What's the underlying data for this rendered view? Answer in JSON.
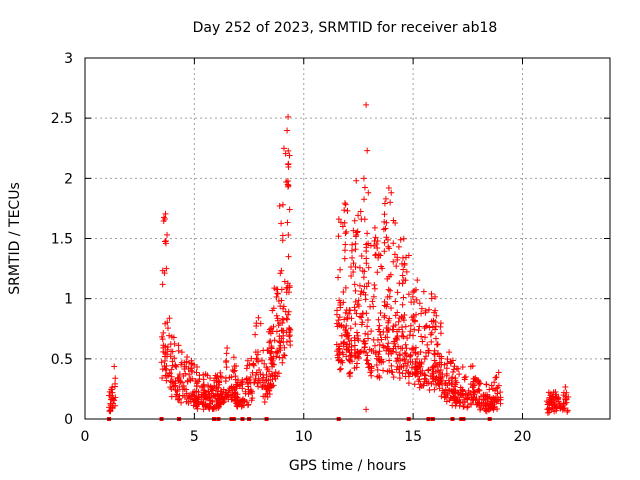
{
  "chart_data": {
    "type": "scatter",
    "title": "Day 252 of 2023, SRMTID for receiver ab18",
    "xlabel": "GPS time / hours",
    "ylabel": "SRMTID / TECUs",
    "xlim": [
      0,
      24
    ],
    "ylim": [
      0,
      3
    ],
    "x_ticks": [
      0,
      5,
      10,
      15,
      20
    ],
    "x_tick_labels": [
      "0",
      "5",
      "10",
      "15",
      "20"
    ],
    "y_ticks": [
      0,
      0.5,
      1,
      1.5,
      2,
      2.5,
      3
    ],
    "y_tick_labels": [
      "0",
      "0.5",
      "1",
      "1.5",
      "2",
      "2.5",
      "3"
    ],
    "grid": true,
    "marker": "+",
    "marker_color": "#ff0000",
    "axis_color": "#000000",
    "grid_color": "#a0a0a0",
    "zero_markers": [
      1.1,
      3.5,
      4.3,
      5.9,
      6.1,
      6.7,
      6.8,
      7.2,
      7.5,
      8.3,
      11.6,
      14.8,
      15.7,
      15.9,
      16.8,
      17.2,
      17.3,
      18.5
    ],
    "series": [
      {
        "name": "SRMTID",
        "clusters": [
          {
            "x0": 1.1,
            "x1": 1.4,
            "n": 30,
            "profile": [
              [
                1.1,
                0.15
              ],
              [
                1.25,
                0.22
              ],
              [
                1.4,
                0.28
              ]
            ]
          },
          {
            "x0": 3.5,
            "x1": 4.4,
            "n": 90,
            "profile": [
              [
                3.5,
                0.55
              ],
              [
                3.6,
                1.1
              ],
              [
                3.7,
                0.9
              ],
              [
                3.8,
                0.6
              ],
              [
                4.0,
                0.45
              ],
              [
                4.4,
                0.35
              ]
            ]
          },
          {
            "x0": 4.4,
            "x1": 5.2,
            "n": 60,
            "profile": [
              [
                4.4,
                0.3
              ],
              [
                4.8,
                0.33
              ],
              [
                5.2,
                0.25
              ]
            ]
          },
          {
            "x0": 5.0,
            "x1": 6.2,
            "n": 110,
            "profile": [
              [
                5.0,
                0.22
              ],
              [
                5.6,
                0.2
              ],
              [
                6.2,
                0.2
              ]
            ]
          },
          {
            "x0": 6.0,
            "x1": 7.0,
            "n": 80,
            "profile": [
              [
                6.0,
                0.22
              ],
              [
                6.4,
                0.35
              ],
              [
                7.0,
                0.25
              ]
            ]
          },
          {
            "x0": 6.9,
            "x1": 8.2,
            "n": 100,
            "profile": [
              [
                6.9,
                0.18
              ],
              [
                7.5,
                0.3
              ],
              [
                7.9,
                0.5
              ],
              [
                8.2,
                0.35
              ]
            ]
          },
          {
            "x0": 8.2,
            "x1": 9.4,
            "n": 150,
            "profile": [
              [
                8.2,
                0.3
              ],
              [
                8.6,
                0.55
              ],
              [
                8.9,
                0.95
              ],
              [
                9.1,
                1.3
              ],
              [
                9.3,
                1.5
              ],
              [
                9.4,
                1.0
              ]
            ]
          },
          {
            "x0": 11.5,
            "x1": 13.0,
            "n": 200,
            "profile": [
              [
                11.5,
                0.9
              ],
              [
                11.9,
                1.1
              ],
              [
                12.3,
                0.9
              ],
              [
                12.7,
                1.2
              ],
              [
                13.0,
                1.0
              ]
            ]
          },
          {
            "x0": 13.0,
            "x1": 15.0,
            "n": 230,
            "profile": [
              [
                13.0,
                0.9
              ],
              [
                13.5,
                0.9
              ],
              [
                13.9,
                1.05
              ],
              [
                14.4,
                0.85
              ],
              [
                15.0,
                0.7
              ]
            ]
          },
          {
            "x0": 15.0,
            "x1": 16.4,
            "n": 160,
            "profile": [
              [
                15.0,
                0.7
              ],
              [
                15.6,
                0.62
              ],
              [
                16.0,
                0.55
              ],
              [
                16.4,
                0.45
              ]
            ]
          },
          {
            "x0": 16.4,
            "x1": 17.5,
            "n": 100,
            "profile": [
              [
                16.4,
                0.35
              ],
              [
                16.9,
                0.25
              ],
              [
                17.5,
                0.22
              ]
            ]
          },
          {
            "x0": 17.5,
            "x1": 19.0,
            "n": 120,
            "profile": [
              [
                17.5,
                0.3
              ],
              [
                18.0,
                0.2
              ],
              [
                18.5,
                0.15
              ],
              [
                19.0,
                0.25
              ]
            ]
          },
          {
            "x0": 21.1,
            "x1": 22.1,
            "n": 70,
            "profile": [
              [
                21.1,
                0.12
              ],
              [
                21.6,
                0.18
              ],
              [
                22.1,
                0.15
              ]
            ]
          }
        ],
        "peaks": [
          {
            "x": 3.75,
            "y": 1.53
          },
          {
            "x": 3.7,
            "y": 1.46
          },
          {
            "x": 3.72,
            "y": 1.25
          },
          {
            "x": 9.35,
            "y": 2.19
          },
          {
            "x": 9.3,
            "y": 2.12
          },
          {
            "x": 9.2,
            "y": 1.97
          },
          {
            "x": 9.05,
            "y": 1.78
          },
          {
            "x": 8.9,
            "y": 1.77
          },
          {
            "x": 9.28,
            "y": 1.93
          },
          {
            "x": 12.85,
            "y": 2.61
          },
          {
            "x": 12.9,
            "y": 2.23
          },
          {
            "x": 12.75,
            "y": 2.0
          },
          {
            "x": 12.4,
            "y": 1.98
          },
          {
            "x": 12.95,
            "y": 1.88
          },
          {
            "x": 14.0,
            "y": 1.88
          },
          {
            "x": 13.95,
            "y": 1.8
          },
          {
            "x": 12.0,
            "y": 1.73
          },
          {
            "x": 14.1,
            "y": 1.65
          },
          {
            "x": 12.85,
            "y": 0.08
          },
          {
            "x": 14.35,
            "y": 1.43
          },
          {
            "x": 11.9,
            "y": 1.45
          }
        ]
      }
    ]
  }
}
